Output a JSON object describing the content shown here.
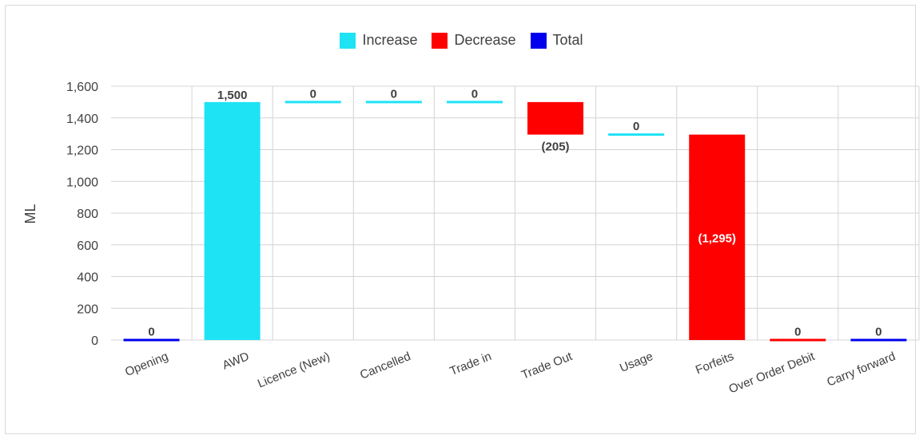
{
  "chart_data": {
    "type": "bar",
    "subtype": "waterfall",
    "title": "",
    "xlabel": "",
    "ylabel": "ML",
    "ylim": [
      0,
      1600
    ],
    "yticks": [
      0,
      200,
      400,
      600,
      800,
      1000,
      1200,
      1400,
      1600
    ],
    "ytick_labels": [
      "0",
      "200",
      "400",
      "600",
      "800",
      "1,000",
      "1,200",
      "1,400",
      "1,600"
    ],
    "grid": true,
    "legend_position": "top",
    "legend": [
      {
        "name": "Increase",
        "color": "#1ee3f5"
      },
      {
        "name": "Decrease",
        "color": "#ff0000"
      },
      {
        "name": "Total",
        "color": "#0000ee"
      }
    ],
    "categories": [
      "Opening",
      "AWD",
      "Licence (New)",
      "Cancelled",
      "Trade in",
      "Trade Out",
      "Usage",
      "Forfeits",
      "Over Order Debit",
      "Carry forward"
    ],
    "bars": [
      {
        "category": "Opening",
        "kind": "Total",
        "start": 0,
        "end": 0,
        "label": "0"
      },
      {
        "category": "AWD",
        "kind": "Increase",
        "start": 0,
        "end": 1500,
        "label": "1,500"
      },
      {
        "category": "Licence (New)",
        "kind": "Increase",
        "start": 1500,
        "end": 1500,
        "label": "0"
      },
      {
        "category": "Cancelled",
        "kind": "Increase",
        "start": 1500,
        "end": 1500,
        "label": "0"
      },
      {
        "category": "Trade in",
        "kind": "Increase",
        "start": 1500,
        "end": 1500,
        "label": "0"
      },
      {
        "category": "Trade Out",
        "kind": "Decrease",
        "start": 1500,
        "end": 1295,
        "label": "(205)"
      },
      {
        "category": "Usage",
        "kind": "Increase",
        "start": 1295,
        "end": 1295,
        "label": "0"
      },
      {
        "category": "Forfeits",
        "kind": "Decrease",
        "start": 1295,
        "end": 0,
        "label": "(1,295)"
      },
      {
        "category": "Over Order Debit",
        "kind": "Decrease",
        "start": 0,
        "end": 0,
        "label": "0"
      },
      {
        "category": "Carry forward",
        "kind": "Total",
        "start": 0,
        "end": 0,
        "label": "0"
      }
    ]
  }
}
